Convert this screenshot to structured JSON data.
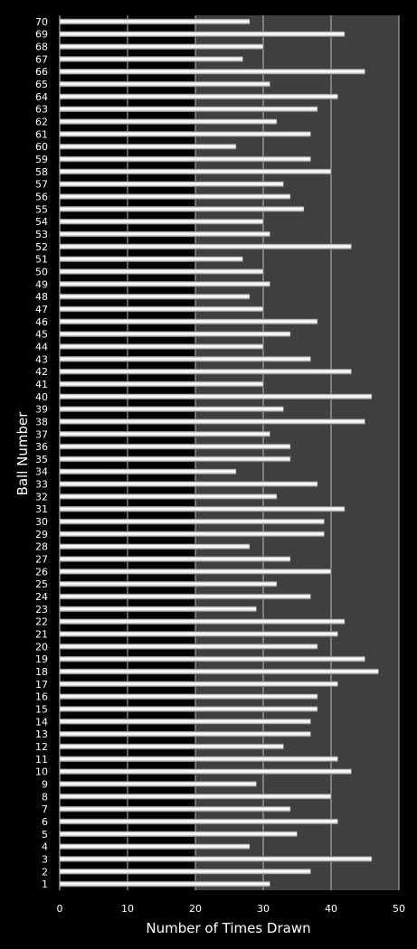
{
  "chart_data": {
    "type": "bar",
    "orientation": "horizontal",
    "xlabel": "Number of Times Drawn",
    "ylabel": "Ball Number",
    "xlim": [
      0,
      50
    ],
    "xticks": [
      0,
      10,
      20,
      30,
      40,
      50
    ],
    "grid": true,
    "colors": {
      "background": "#000000",
      "plot_area_left": "#000000",
      "plot_area_right": "#3f3f3f",
      "bar_fill": "#e8e8e8",
      "gridline": "#bcbcbc",
      "text": "#ffffff"
    },
    "categories": [
      "1",
      "2",
      "3",
      "4",
      "5",
      "6",
      "7",
      "8",
      "9",
      "10",
      "11",
      "12",
      "13",
      "14",
      "15",
      "16",
      "17",
      "18",
      "19",
      "20",
      "21",
      "22",
      "23",
      "24",
      "25",
      "26",
      "27",
      "28",
      "29",
      "30",
      "31",
      "32",
      "33",
      "34",
      "35",
      "36",
      "37",
      "38",
      "39",
      "40",
      "41",
      "42",
      "43",
      "44",
      "45",
      "46",
      "47",
      "48",
      "49",
      "50",
      "51",
      "52",
      "53",
      "54",
      "55",
      "56",
      "57",
      "58",
      "59",
      "60",
      "61",
      "62",
      "63",
      "64",
      "65",
      "66",
      "67",
      "68",
      "69",
      "70"
    ],
    "values": [
      31,
      37,
      46,
      28,
      35,
      41,
      34,
      40,
      29,
      43,
      41,
      33,
      37,
      37,
      38,
      38,
      41,
      47,
      45,
      38,
      41,
      42,
      29,
      37,
      32,
      40,
      34,
      28,
      39,
      39,
      42,
      32,
      38,
      26,
      34,
      34,
      31,
      45,
      33,
      46,
      30,
      43,
      37,
      30,
      34,
      38,
      30,
      28,
      31,
      30,
      27,
      43,
      31,
      30,
      36,
      34,
      33,
      40,
      37,
      26,
      37,
      32,
      38,
      41,
      31,
      45,
      27,
      30,
      42,
      28
    ]
  }
}
